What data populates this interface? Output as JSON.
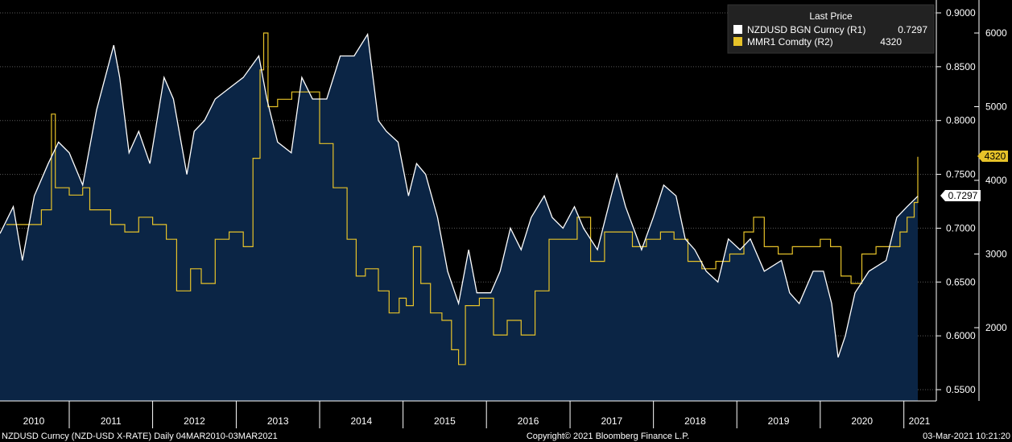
{
  "legend": {
    "title": "Last Price",
    "items": [
      {
        "name": "NZDUSD BGN Curncy  (R1)",
        "value": "0.7297",
        "color": "#ffffff"
      },
      {
        "name": "MMR1 Comdty  (R2)",
        "value": "4320",
        "color": "#e6c229"
      }
    ]
  },
  "footer": {
    "left": "NZDUSD Curncy (NZD-USD X-RATE)  Daily 04MAR2010-03MAR2021",
    "center": "Copyright© 2021 Bloomberg Finance L.P.",
    "right": "03-Mar-2021 10:21:20"
  },
  "last_labels": {
    "r1": "0.7297",
    "r2": "4320"
  },
  "colors": {
    "background": "#000000",
    "area_fill": "#0b2545",
    "nzd_line": "#ffffff",
    "mmr_line": "#e6c229",
    "grid": "#5a5a5a"
  },
  "chart_data": {
    "type": "line",
    "x_axis": {
      "type": "date",
      "range": [
        "2010-03-04",
        "2021-03-03"
      ],
      "tick_labels": [
        "2010",
        "2011",
        "2012",
        "2013",
        "2014",
        "2015",
        "2016",
        "2017",
        "2018",
        "2019",
        "2020",
        "2021"
      ]
    },
    "r1_axis": {
      "range": [
        0.54,
        0.91
      ],
      "tick_labels": [
        "0.5500",
        "0.6000",
        "0.6500",
        "0.7000",
        "0.7500",
        "0.8000",
        "0.8500",
        "0.9000"
      ]
    },
    "r2_axis": {
      "range": [
        1000,
        6300
      ],
      "tick_labels": [
        "2000",
        "3000",
        "4000",
        "5000",
        "6000"
      ]
    },
    "grid": true,
    "legend_position": "top-right",
    "series": [
      {
        "name": "NZDUSD BGN Curncy  (R1)",
        "axis": "r1",
        "style": "area",
        "points": [
          [
            "2010-03-04",
            0.695
          ],
          [
            "2010-05-01",
            0.72
          ],
          [
            "2010-06-10",
            0.67
          ],
          [
            "2010-08-01",
            0.73
          ],
          [
            "2010-10-01",
            0.76
          ],
          [
            "2010-11-15",
            0.78
          ],
          [
            "2011-01-01",
            0.77
          ],
          [
            "2011-03-01",
            0.74
          ],
          [
            "2011-05-01",
            0.81
          ],
          [
            "2011-07-15",
            0.87
          ],
          [
            "2011-08-10",
            0.84
          ],
          [
            "2011-09-20",
            0.77
          ],
          [
            "2011-11-01",
            0.79
          ],
          [
            "2011-12-20",
            0.76
          ],
          [
            "2012-02-20",
            0.84
          ],
          [
            "2012-04-01",
            0.82
          ],
          [
            "2012-05-30",
            0.75
          ],
          [
            "2012-07-01",
            0.79
          ],
          [
            "2012-08-15",
            0.8
          ],
          [
            "2012-10-01",
            0.82
          ],
          [
            "2012-12-01",
            0.83
          ],
          [
            "2013-02-01",
            0.84
          ],
          [
            "2013-04-10",
            0.86
          ],
          [
            "2013-05-15",
            0.82
          ],
          [
            "2013-07-01",
            0.78
          ],
          [
            "2013-08-30",
            0.77
          ],
          [
            "2013-10-15",
            0.84
          ],
          [
            "2013-12-01",
            0.82
          ],
          [
            "2014-02-01",
            0.82
          ],
          [
            "2014-04-01",
            0.86
          ],
          [
            "2014-06-01",
            0.86
          ],
          [
            "2014-07-30",
            0.88
          ],
          [
            "2014-09-15",
            0.8
          ],
          [
            "2014-10-20",
            0.79
          ],
          [
            "2014-12-10",
            0.78
          ],
          [
            "2015-01-25",
            0.73
          ],
          [
            "2015-03-01",
            0.76
          ],
          [
            "2015-04-10",
            0.75
          ],
          [
            "2015-06-01",
            0.71
          ],
          [
            "2015-07-15",
            0.66
          ],
          [
            "2015-09-01",
            0.63
          ],
          [
            "2015-10-15",
            0.68
          ],
          [
            "2015-11-20",
            0.64
          ],
          [
            "2016-01-20",
            0.64
          ],
          [
            "2016-03-01",
            0.66
          ],
          [
            "2016-04-15",
            0.7
          ],
          [
            "2016-06-01",
            0.68
          ],
          [
            "2016-07-15",
            0.71
          ],
          [
            "2016-09-10",
            0.73
          ],
          [
            "2016-10-15",
            0.71
          ],
          [
            "2016-12-01",
            0.7
          ],
          [
            "2017-01-20",
            0.72
          ],
          [
            "2017-03-01",
            0.7
          ],
          [
            "2017-05-01",
            0.68
          ],
          [
            "2017-06-30",
            0.73
          ],
          [
            "2017-07-25",
            0.75
          ],
          [
            "2017-09-01",
            0.72
          ],
          [
            "2017-11-10",
            0.68
          ],
          [
            "2017-12-31",
            0.71
          ],
          [
            "2018-02-15",
            0.74
          ],
          [
            "2018-04-10",
            0.73
          ],
          [
            "2018-05-20",
            0.69
          ],
          [
            "2018-07-01",
            0.68
          ],
          [
            "2018-08-20",
            0.66
          ],
          [
            "2018-10-10",
            0.65
          ],
          [
            "2018-11-25",
            0.69
          ],
          [
            "2019-01-15",
            0.68
          ],
          [
            "2019-03-01",
            0.69
          ],
          [
            "2019-05-01",
            0.66
          ],
          [
            "2019-07-15",
            0.67
          ],
          [
            "2019-08-20",
            0.64
          ],
          [
            "2019-10-01",
            0.63
          ],
          [
            "2019-12-01",
            0.66
          ],
          [
            "2020-01-15",
            0.66
          ],
          [
            "2020-02-20",
            0.63
          ],
          [
            "2020-03-19",
            0.58
          ],
          [
            "2020-04-20",
            0.6
          ],
          [
            "2020-06-01",
            0.64
          ],
          [
            "2020-08-01",
            0.66
          ],
          [
            "2020-10-15",
            0.67
          ],
          [
            "2020-12-01",
            0.71
          ],
          [
            "2021-01-15",
            0.72
          ],
          [
            "2021-03-03",
            0.7297
          ]
        ]
      },
      {
        "name": "MMR1 Comdty  (R2)",
        "axis": "r2",
        "style": "line",
        "points": [
          [
            "2010-04-01",
            3400
          ],
          [
            "2010-07-01",
            3400
          ],
          [
            "2010-09-01",
            3600
          ],
          [
            "2010-10-15",
            4900
          ],
          [
            "2010-11-01",
            3900
          ],
          [
            "2011-01-01",
            3800
          ],
          [
            "2011-03-01",
            3900
          ],
          [
            "2011-04-01",
            3600
          ],
          [
            "2011-07-01",
            3400
          ],
          [
            "2011-09-01",
            3300
          ],
          [
            "2011-11-01",
            3500
          ],
          [
            "2012-01-01",
            3400
          ],
          [
            "2012-03-01",
            3200
          ],
          [
            "2012-04-15",
            2500
          ],
          [
            "2012-06-15",
            2800
          ],
          [
            "2012-08-01",
            2600
          ],
          [
            "2012-10-01",
            3200
          ],
          [
            "2012-12-01",
            3300
          ],
          [
            "2013-02-01",
            3100
          ],
          [
            "2013-03-15",
            4300
          ],
          [
            "2013-04-15",
            5500
          ],
          [
            "2013-05-01",
            6000
          ],
          [
            "2013-05-20",
            5000
          ],
          [
            "2013-07-01",
            5100
          ],
          [
            "2013-09-01",
            5200
          ],
          [
            "2013-11-15",
            5200
          ],
          [
            "2014-01-01",
            4500
          ],
          [
            "2014-03-01",
            3900
          ],
          [
            "2014-05-01",
            3200
          ],
          [
            "2014-06-10",
            2700
          ],
          [
            "2014-07-20",
            2800
          ],
          [
            "2014-09-15",
            2500
          ],
          [
            "2014-11-01",
            2200
          ],
          [
            "2014-12-15",
            2400
          ],
          [
            "2015-01-15",
            2300
          ],
          [
            "2015-02-15",
            3100
          ],
          [
            "2015-03-20",
            2600
          ],
          [
            "2015-05-01",
            2200
          ],
          [
            "2015-06-20",
            2100
          ],
          [
            "2015-08-01",
            1700
          ],
          [
            "2015-09-01",
            1500
          ],
          [
            "2015-10-01",
            2300
          ],
          [
            "2015-12-01",
            2400
          ],
          [
            "2016-02-01",
            1900
          ],
          [
            "2016-04-01",
            2100
          ],
          [
            "2016-06-01",
            1900
          ],
          [
            "2016-08-01",
            2500
          ],
          [
            "2016-10-01",
            3200
          ],
          [
            "2016-12-01",
            3200
          ],
          [
            "2017-02-01",
            3500
          ],
          [
            "2017-04-01",
            2900
          ],
          [
            "2017-06-01",
            3300
          ],
          [
            "2017-08-01",
            3300
          ],
          [
            "2017-10-01",
            3100
          ],
          [
            "2017-12-01",
            3200
          ],
          [
            "2018-02-01",
            3300
          ],
          [
            "2018-04-01",
            3200
          ],
          [
            "2018-06-01",
            2900
          ],
          [
            "2018-08-01",
            2800
          ],
          [
            "2018-10-01",
            2900
          ],
          [
            "2018-12-01",
            3000
          ],
          [
            "2019-02-01",
            3300
          ],
          [
            "2019-03-15",
            3500
          ],
          [
            "2019-05-01",
            3100
          ],
          [
            "2019-07-01",
            3000
          ],
          [
            "2019-09-01",
            3100
          ],
          [
            "2019-11-01",
            3100
          ],
          [
            "2020-01-01",
            3200
          ],
          [
            "2020-02-15",
            3100
          ],
          [
            "2020-04-01",
            2700
          ],
          [
            "2020-05-15",
            2600
          ],
          [
            "2020-07-01",
            3000
          ],
          [
            "2020-09-01",
            3100
          ],
          [
            "2020-11-01",
            3100
          ],
          [
            "2020-12-15",
            3300
          ],
          [
            "2021-01-15",
            3500
          ],
          [
            "2021-02-15",
            3700
          ],
          [
            "2021-03-03",
            4320
          ]
        ]
      }
    ]
  }
}
